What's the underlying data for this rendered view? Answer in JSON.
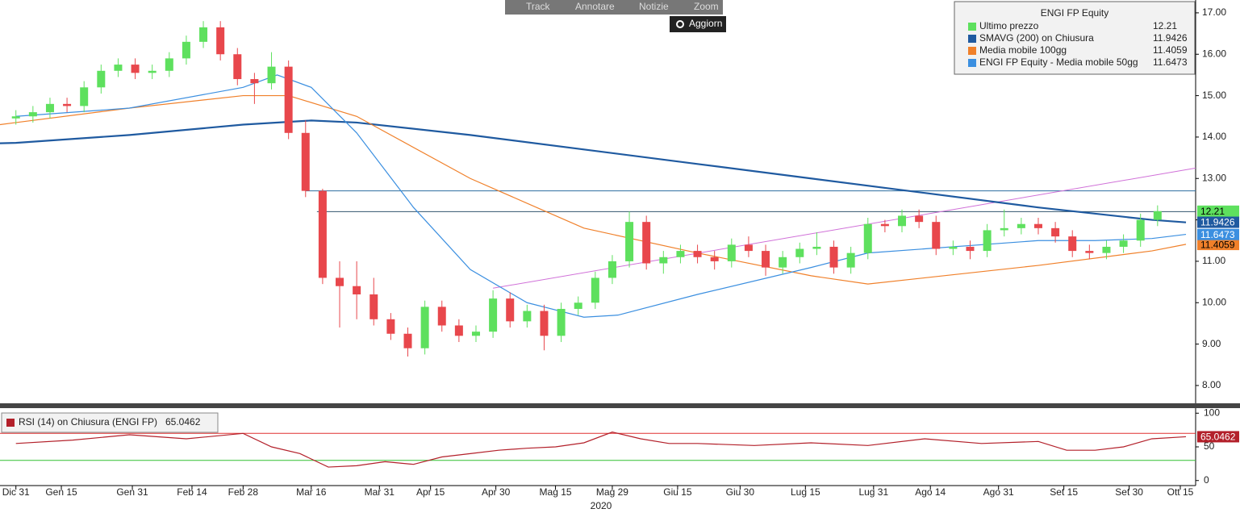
{
  "toolbar": [
    "Track",
    "Annotare",
    "Notizie",
    "Zoom"
  ],
  "refresh": "Aggiorn",
  "chart_data": [
    {
      "type": "candlestick",
      "legend_title": "ENGI FP Equity",
      "xlim": [
        -2.8,
        207.7
      ],
      "ylim": [
        7.57,
        17.31
      ],
      "yticks": [
        {
          "value": 8,
          "label": "8.00"
        },
        {
          "value": 9,
          "label": "9.00"
        },
        {
          "value": 10,
          "label": "10.00"
        },
        {
          "value": 11,
          "label": "11.00"
        },
        {
          "value": 12,
          "label": "12.00"
        },
        {
          "value": 13,
          "label": "13.00"
        },
        {
          "value": 14,
          "label": "14.00"
        },
        {
          "value": 15,
          "label": "15.00"
        },
        {
          "value": 16,
          "label": "16.00"
        },
        {
          "value": 17,
          "label": "17.00"
        }
      ],
      "candles": {
        "name": "Ultimo prezzo",
        "color": "#5ee05e",
        "color_down": "#e8474c",
        "last": 12.21,
        "x": [
          0,
          3,
          6,
          9,
          12,
          15,
          18,
          21,
          24,
          27,
          30,
          33,
          36,
          39,
          42,
          45,
          48,
          51,
          54,
          57,
          60,
          63,
          66,
          69,
          72,
          75,
          78,
          81,
          84,
          87,
          90,
          93,
          96,
          99,
          102,
          105,
          108,
          111,
          114,
          117,
          120,
          123,
          126,
          129,
          132,
          135,
          138,
          141,
          144,
          147,
          150,
          153,
          156,
          159,
          162,
          165,
          168,
          171,
          174,
          177,
          180,
          183,
          186,
          189,
          192,
          195,
          198,
          201
        ],
        "open": [
          14.45,
          14.5,
          14.6,
          14.8,
          14.75,
          15.2,
          15.6,
          15.75,
          15.55,
          15.6,
          15.9,
          16.3,
          16.65,
          16.0,
          15.4,
          15.3,
          15.7,
          14.1,
          12.7,
          10.6,
          10.4,
          10.2,
          9.6,
          9.25,
          8.9,
          9.9,
          9.45,
          9.2,
          9.3,
          10.1,
          9.55,
          9.8,
          9.2,
          9.85,
          10.0,
          10.6,
          11.0,
          11.95,
          10.95,
          11.1,
          11.25,
          11.1,
          11.0,
          11.4,
          11.25,
          10.85,
          11.1,
          11.3,
          11.35,
          10.85,
          11.2,
          11.9,
          11.85,
          12.1,
          11.95,
          11.3,
          11.35,
          11.25,
          11.75,
          11.8,
          11.9,
          11.8,
          11.6,
          11.25,
          11.2,
          11.35,
          11.5,
          12.0
        ],
        "high": [
          14.65,
          14.75,
          14.95,
          14.95,
          15.35,
          15.75,
          15.9,
          15.9,
          15.75,
          16.05,
          16.45,
          16.8,
          16.8,
          16.15,
          15.55,
          16.05,
          15.85,
          14.4,
          12.75,
          11.0,
          11.0,
          10.6,
          9.75,
          9.4,
          10.05,
          10.05,
          9.6,
          9.45,
          10.3,
          10.25,
          9.95,
          9.95,
          10.0,
          10.15,
          10.75,
          11.15,
          12.2,
          12.1,
          11.25,
          11.4,
          11.4,
          11.25,
          11.55,
          11.6,
          11.4,
          11.25,
          11.45,
          11.7,
          11.5,
          11.35,
          12.05,
          12.0,
          12.25,
          12.25,
          12.1,
          11.5,
          11.5,
          11.9,
          12.25,
          12.05,
          12.05,
          11.95,
          11.75,
          11.4,
          11.5,
          11.65,
          12.15,
          12.35
        ],
        "low": [
          14.3,
          14.35,
          14.45,
          14.6,
          14.6,
          15.05,
          15.45,
          15.4,
          15.4,
          15.45,
          15.75,
          16.15,
          15.85,
          15.25,
          14.8,
          15.15,
          13.95,
          12.55,
          10.45,
          9.4,
          9.6,
          9.45,
          9.1,
          8.7,
          8.75,
          9.3,
          9.05,
          9.05,
          9.15,
          9.4,
          9.4,
          8.85,
          9.05,
          9.7,
          9.85,
          10.45,
          10.85,
          10.8,
          10.7,
          10.95,
          10.95,
          10.8,
          10.85,
          11.1,
          10.65,
          10.7,
          10.95,
          11.15,
          10.7,
          10.7,
          11.05,
          11.7,
          11.7,
          11.8,
          11.15,
          11.15,
          11.05,
          11.1,
          11.6,
          11.65,
          11.65,
          11.45,
          11.1,
          11.05,
          11.05,
          11.2,
          11.35,
          11.85
        ],
        "close": [
          14.5,
          14.6,
          14.8,
          14.75,
          15.2,
          15.6,
          15.75,
          15.55,
          15.6,
          15.9,
          16.3,
          16.65,
          16.0,
          15.4,
          15.3,
          15.7,
          14.1,
          12.7,
          10.6,
          10.4,
          10.2,
          9.6,
          9.25,
          8.9,
          9.9,
          9.45,
          9.2,
          9.3,
          10.1,
          9.55,
          9.8,
          9.2,
          9.85,
          10.0,
          10.6,
          11.0,
          11.95,
          10.95,
          11.1,
          11.25,
          11.1,
          11.0,
          11.4,
          11.25,
          10.85,
          11.1,
          11.3,
          11.35,
          10.85,
          11.2,
          11.9,
          11.85,
          12.1,
          11.95,
          11.3,
          11.35,
          11.25,
          11.75,
          11.8,
          11.9,
          11.8,
          11.6,
          11.25,
          11.2,
          11.35,
          11.5,
          12.0,
          12.21
        ]
      },
      "series": [
        {
          "name": "SMAVG (200)  on Chiusura",
          "color": "#1f5aa0",
          "width": 2.2,
          "last": 11.9426,
          "x": [
            -2.8,
            0,
            20,
            40,
            52,
            60,
            80,
            100,
            120,
            140,
            160,
            180,
            200,
            206
          ],
          "values": [
            13.85,
            13.86,
            14.05,
            14.3,
            14.4,
            14.35,
            14.05,
            13.7,
            13.35,
            13.0,
            12.65,
            12.3,
            12.0,
            11.94
          ]
        },
        {
          "name": "Media mobile 100gg",
          "color": "#f0802a",
          "width": 1.2,
          "last": 11.4059,
          "x": [
            -2.8,
            0,
            20,
            40,
            48,
            60,
            80,
            100,
            120,
            140,
            150,
            160,
            180,
            200,
            206
          ],
          "values": [
            14.3,
            14.35,
            14.7,
            15.0,
            15.0,
            14.5,
            13.0,
            11.8,
            11.2,
            10.65,
            10.45,
            10.6,
            10.9,
            11.25,
            11.41
          ]
        },
        {
          "name": "ENGI FP Equity - Media mobile 50gg",
          "color": "#3b8fe0",
          "width": 1.2,
          "last": 11.6473,
          "x": [
            0,
            20,
            40,
            46,
            52,
            60,
            70,
            80,
            90,
            100,
            106,
            120,
            140,
            150,
            160,
            180,
            190,
            200,
            206
          ],
          "values": [
            14.5,
            14.7,
            15.2,
            15.5,
            15.2,
            14.1,
            12.3,
            10.8,
            10.0,
            9.65,
            9.7,
            10.2,
            10.85,
            11.2,
            11.3,
            11.5,
            11.5,
            11.55,
            11.65
          ]
        }
      ],
      "reference_lines": [
        {
          "color": "#2d6ea0",
          "x": [
            51,
            207.7
          ],
          "values": [
            12.7,
            12.7
          ]
        },
        {
          "color": "#33556e",
          "x": [
            53,
            207.7
          ],
          "values": [
            12.2,
            12.2
          ]
        },
        {
          "color": "#d070d8",
          "x": [
            84,
            207.7
          ],
          "values": [
            10.35,
            13.25
          ]
        }
      ]
    },
    {
      "type": "line",
      "name": "RSI (14)  on Chiusura (ENGI FP)",
      "color": "#b3202a",
      "last": 65.0462,
      "xlim": [
        -2.8,
        207.7
      ],
      "ylim": [
        -7.5,
        107.5
      ],
      "yticks": [
        0,
        50,
        100
      ],
      "levels": [
        {
          "value": 70,
          "color": "#e03030"
        },
        {
          "value": 30,
          "color": "#30c030"
        }
      ],
      "x": [
        0,
        10,
        20,
        30,
        40,
        45,
        50,
        55,
        60,
        65,
        70,
        75,
        80,
        85,
        90,
        95,
        100,
        105,
        110,
        115,
        120,
        130,
        140,
        150,
        160,
        170,
        180,
        185,
        190,
        195,
        200,
        206
      ],
      "values": [
        55,
        60,
        68,
        62,
        70,
        50,
        40,
        20,
        22,
        28,
        24,
        35,
        40,
        45,
        48,
        50,
        56,
        72,
        62,
        55,
        55,
        52,
        56,
        52,
        62,
        55,
        58,
        45,
        45,
        50,
        62,
        65.0462
      ],
      "xticks": [
        {
          "value": 0,
          "label": "Dic 31"
        },
        {
          "value": 8,
          "label": "Gen 15"
        },
        {
          "value": 20.5,
          "label": "Gen 31"
        },
        {
          "value": 31,
          "label": "Feb 14"
        },
        {
          "value": 40,
          "label": "Feb 28"
        },
        {
          "value": 52,
          "label": "Mar 16"
        },
        {
          "value": 64,
          "label": "Mar 31"
        },
        {
          "value": 73,
          "label": "Apr 15"
        },
        {
          "value": 84.5,
          "label": "Apr 30"
        },
        {
          "value": 95,
          "label": "Mag 15"
        },
        {
          "value": 105,
          "label": "Mag 29"
        },
        {
          "value": 116.5,
          "label": "Giu 15"
        },
        {
          "value": 127.5,
          "label": "Giu 30"
        },
        {
          "value": 139,
          "label": "Lug 15"
        },
        {
          "value": 151,
          "label": "Lug 31"
        },
        {
          "value": 161,
          "label": "Ago 14"
        },
        {
          "value": 173,
          "label": "Ago 31"
        },
        {
          "value": 184.5,
          "label": "Set 15"
        },
        {
          "value": 196,
          "label": "Set 30"
        },
        {
          "value": 205,
          "label": "Ott 15"
        }
      ],
      "x_label": "2020"
    }
  ]
}
